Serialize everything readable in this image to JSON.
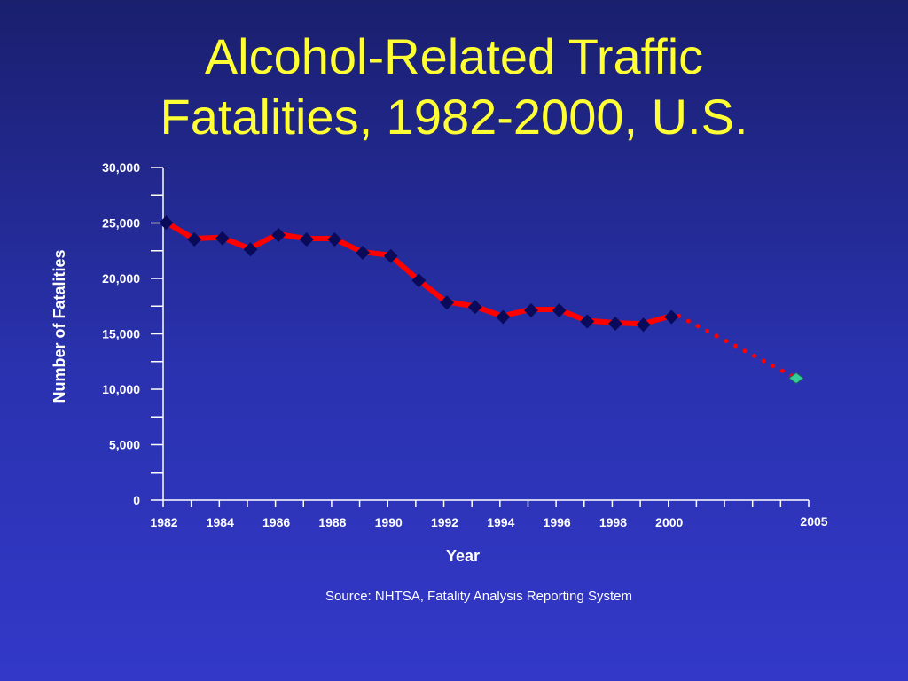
{
  "slide": {
    "title_line1": "Alcohol-Related Traffic",
    "title_line2": "Fatalities, 1982-2000, U.S.",
    "source": "Source: NHTSA, Fatality Analysis Reporting System"
  },
  "colors": {
    "title": "#ffff33",
    "text": "#ffffff",
    "series_line": "#ff0000",
    "series_marker": "#0a0a5a",
    "projection_marker": "#33cc99"
  },
  "chart_data": {
    "type": "line",
    "title": "",
    "xlabel": "Year",
    "ylabel": "Number of Fatalities",
    "ylim": [
      0,
      30000
    ],
    "yticks": [
      0,
      5000,
      10000,
      15000,
      20000,
      25000,
      30000
    ],
    "ytick_labels": [
      "0",
      "5,000",
      "10,000",
      "15,000",
      "20,000",
      "25,000",
      "30,000"
    ],
    "xlim": [
      1982,
      2005
    ],
    "xticks": [
      1982,
      1984,
      1986,
      1988,
      1990,
      1992,
      1994,
      1996,
      1998,
      2000,
      2005
    ],
    "xtick_labels": [
      "1982",
      "1984",
      "1986",
      "1988",
      "1990",
      "1992",
      "1994",
      "1996",
      "1998",
      "2000",
      "2005"
    ],
    "grid": false,
    "series": [
      {
        "x": [
          1982,
          1983,
          1984,
          1985,
          1986,
          1987,
          1988,
          1989,
          1990,
          1991,
          1992,
          1993,
          1994,
          1995,
          1996,
          1997,
          1998,
          1999,
          2000
        ],
        "values": [
          25100,
          23600,
          23700,
          22700,
          24000,
          23600,
          23600,
          22400,
          22100,
          19900,
          17900,
          17500,
          16600,
          17200,
          17200,
          16200,
          16000,
          15900,
          16600
        ],
        "style": "solid"
      },
      {
        "x": [
          2000,
          2005
        ],
        "values": [
          16600,
          11000
        ],
        "style": "dotted"
      }
    ]
  }
}
